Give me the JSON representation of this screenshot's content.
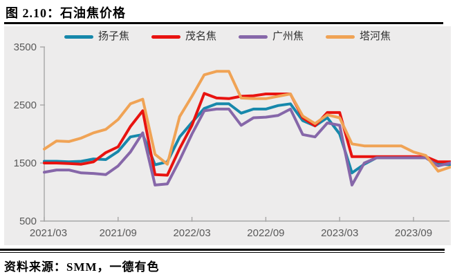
{
  "header": {
    "title": "图 2.10：石油焦价格"
  },
  "footer": {
    "source": "资料来源：SMM，一德有色"
  },
  "colors": {
    "panel_bg": "#EDECEC",
    "axis": "#A6A6A6",
    "tick_text": "#595959",
    "series_teal": "#1788AB",
    "series_red": "#E81310",
    "series_purple": "#8667A9",
    "series_orange": "#F0A355"
  },
  "chart_data": {
    "type": "line",
    "title": "石油焦价格",
    "xlabel": "",
    "ylabel": "",
    "ylim": [
      500,
      3500
    ],
    "y_ticks": [
      500,
      1500,
      2500,
      3500
    ],
    "grid": false,
    "legend_position": "top",
    "categories": [
      "2021/03",
      "2021/04",
      "2021/05",
      "2021/06",
      "2021/07",
      "2021/08",
      "2021/09",
      "2021/10",
      "2021/11",
      "2021/12",
      "2022/01",
      "2022/02",
      "2022/03",
      "2022/04",
      "2022/05",
      "2022/06",
      "2022/07",
      "2022/08",
      "2022/09",
      "2022/10",
      "2022/11",
      "2022/12",
      "2023/01",
      "2023/02",
      "2023/03",
      "2023/04",
      "2023/05",
      "2023/06",
      "2023/07",
      "2023/08",
      "2023/09",
      "2023/10",
      "2023/11",
      "2023/12"
    ],
    "x_tick_indices": [
      0,
      6,
      12,
      18,
      24,
      30
    ],
    "x_tick_labels": [
      "2021/03",
      "2021/09",
      "2022/03",
      "2022/09",
      "2023/03",
      "2023/09"
    ],
    "series": [
      {
        "name": "扬子焦",
        "color": "#1788AB",
        "values": [
          1530,
          1530,
          1520,
          1530,
          1570,
          1560,
          1700,
          1950,
          1990,
          1470,
          1520,
          1950,
          2200,
          2440,
          2520,
          2520,
          2360,
          2430,
          2430,
          2490,
          2520,
          2230,
          2140,
          2280,
          2000,
          1330,
          1480,
          1590,
          1590,
          1590,
          1590,
          1590,
          1480,
          1470
        ]
      },
      {
        "name": "茂名焦",
        "color": "#E81310",
        "values": [
          1500,
          1500,
          1490,
          1480,
          1520,
          1680,
          1780,
          2130,
          2400,
          1300,
          1290,
          1750,
          2150,
          2700,
          2620,
          2610,
          2650,
          2660,
          2690,
          2690,
          2690,
          2280,
          2140,
          2370,
          2370,
          1610,
          1610,
          1610,
          1610,
          1610,
          1610,
          1610,
          1520,
          1520
        ]
      },
      {
        "name": "广州焦",
        "color": "#8667A9",
        "values": [
          1340,
          1380,
          1380,
          1330,
          1320,
          1300,
          1450,
          1690,
          2020,
          1120,
          1140,
          1550,
          2000,
          2400,
          2430,
          2430,
          2150,
          2280,
          2290,
          2320,
          2430,
          1990,
          1950,
          2190,
          2150,
          1120,
          1500,
          1590,
          1590,
          1590,
          1590,
          1590,
          1450,
          1500
        ]
      },
      {
        "name": "塔河焦",
        "color": "#F0A355",
        "values": [
          1740,
          1880,
          1870,
          1930,
          2020,
          2080,
          2250,
          2520,
          2600,
          1650,
          1480,
          2300,
          2650,
          3020,
          3080,
          3080,
          2620,
          2610,
          2610,
          2650,
          2690,
          2310,
          2180,
          2330,
          2280,
          1830,
          1795,
          1795,
          1795,
          1795,
          1690,
          1630,
          1360,
          1430
        ]
      }
    ]
  }
}
